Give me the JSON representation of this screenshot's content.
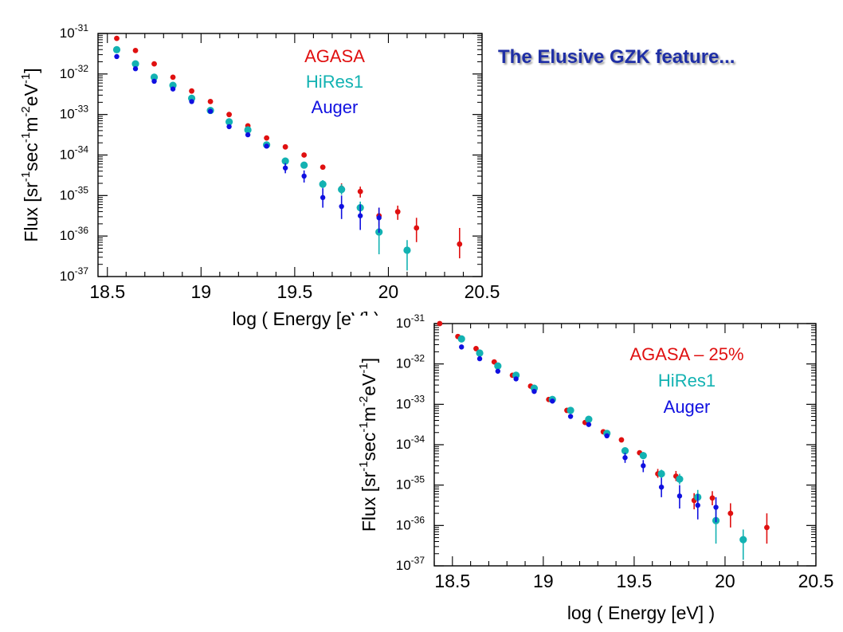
{
  "slide": {
    "title": "The Elusive GZK feature..."
  },
  "colors": {
    "agasa": "#e01010",
    "hires": "#13b2b2",
    "auger": "#1010e0",
    "title": "#1f2fa6"
  },
  "chart_data": [
    {
      "type": "scatter",
      "xlabel": "log ( Energy  [eV] )",
      "ylabel_parts": [
        "Flux  [sr",
        "-1",
        "sec",
        "-1",
        "m",
        "-2",
        "eV",
        "-1",
        "]"
      ],
      "xlim": [
        18.45,
        20.5
      ],
      "ylim_exp": [
        -37,
        -31
      ],
      "y_log": true,
      "xticks": [
        "18.5",
        "19",
        "19.5",
        "20",
        "20.5"
      ],
      "xtick_values": [
        18.5,
        19,
        19.5,
        20,
        20.5
      ],
      "yticks": [
        {
          "base": "10",
          "exp": "-31",
          "value": -31
        },
        {
          "base": "10",
          "exp": "-32",
          "value": -32
        },
        {
          "base": "10",
          "exp": "-33",
          "value": -33
        },
        {
          "base": "10",
          "exp": "-34",
          "value": -34
        },
        {
          "base": "10",
          "exp": "-35",
          "value": -35
        },
        {
          "base": "10",
          "exp": "-36",
          "value": -36
        },
        {
          "base": "10",
          "exp": "-37",
          "value": -37
        }
      ],
      "legend": [
        "AGASA",
        "HiRes1",
        "Auger"
      ],
      "series": [
        {
          "name": "AGASA",
          "color": "#e01010",
          "points": [
            {
              "x": 18.55,
              "y": -31.12,
              "lo": -31.12,
              "hi": -31.12
            },
            {
              "x": 18.65,
              "y": -31.42,
              "lo": -31.42,
              "hi": -31.42
            },
            {
              "x": 18.75,
              "y": -31.75,
              "lo": -31.75,
              "hi": -31.75
            },
            {
              "x": 18.85,
              "y": -32.08,
              "lo": -32.08,
              "hi": -32.08
            },
            {
              "x": 18.95,
              "y": -32.42,
              "lo": -32.42,
              "hi": -32.42
            },
            {
              "x": 19.05,
              "y": -32.68,
              "lo": -32.68,
              "hi": -32.68
            },
            {
              "x": 19.15,
              "y": -33.0,
              "lo": -33.0,
              "hi": -33.0
            },
            {
              "x": 19.25,
              "y": -33.28,
              "lo": -33.28,
              "hi": -33.28
            },
            {
              "x": 19.35,
              "y": -33.58,
              "lo": -33.58,
              "hi": -33.58
            },
            {
              "x": 19.45,
              "y": -33.8,
              "lo": -33.8,
              "hi": -33.8
            },
            {
              "x": 19.55,
              "y": -34.0,
              "lo": -34.0,
              "hi": -34.0
            },
            {
              "x": 19.65,
              "y": -34.3,
              "lo": -34.3,
              "hi": -34.3
            },
            {
              "x": 19.75,
              "y": -34.82,
              "lo": -34.95,
              "hi": -34.7
            },
            {
              "x": 19.85,
              "y": -34.9,
              "lo": -35.05,
              "hi": -34.78
            },
            {
              "x": 19.95,
              "y": -35.5,
              "lo": -35.75,
              "hi": -35.3
            },
            {
              "x": 20.05,
              "y": -35.4,
              "lo": -35.6,
              "hi": -35.25
            },
            {
              "x": 20.15,
              "y": -35.8,
              "lo": -36.15,
              "hi": -35.55
            },
            {
              "x": 20.38,
              "y": -36.2,
              "lo": -36.55,
              "hi": -35.8
            }
          ]
        },
        {
          "name": "HiRes1",
          "color": "#13b2b2",
          "points": [
            {
              "x": 18.55,
              "y": -31.4,
              "lo": -31.4,
              "hi": -31.4
            },
            {
              "x": 18.65,
              "y": -31.75,
              "lo": -31.75,
              "hi": -31.75
            },
            {
              "x": 18.75,
              "y": -32.08,
              "lo": -32.08,
              "hi": -32.08
            },
            {
              "x": 18.85,
              "y": -32.28,
              "lo": -32.28,
              "hi": -32.28
            },
            {
              "x": 18.95,
              "y": -32.6,
              "lo": -32.6,
              "hi": -32.6
            },
            {
              "x": 19.05,
              "y": -32.9,
              "lo": -32.9,
              "hi": -32.9
            },
            {
              "x": 19.15,
              "y": -33.18,
              "lo": -33.18,
              "hi": -33.18
            },
            {
              "x": 19.25,
              "y": -33.38,
              "lo": -33.38,
              "hi": -33.38
            },
            {
              "x": 19.35,
              "y": -33.75,
              "lo": -33.75,
              "hi": -33.75
            },
            {
              "x": 19.45,
              "y": -34.15,
              "lo": -34.22,
              "hi": -34.08
            },
            {
              "x": 19.55,
              "y": -34.25,
              "lo": -34.32,
              "hi": -34.18
            },
            {
              "x": 19.65,
              "y": -34.72,
              "lo": -34.82,
              "hi": -34.62
            },
            {
              "x": 19.75,
              "y": -34.85,
              "lo": -34.98,
              "hi": -34.72
            },
            {
              "x": 19.85,
              "y": -35.3,
              "lo": -35.5,
              "hi": -35.15
            },
            {
              "x": 19.95,
              "y": -35.9,
              "lo": -36.45,
              "hi": -35.55
            },
            {
              "x": 20.1,
              "y": -36.35,
              "lo": -36.85,
              "hi": -36.1
            }
          ]
        },
        {
          "name": "Auger",
          "color": "#1010e0",
          "points": [
            {
              "x": 18.55,
              "y": -31.57,
              "lo": -31.57,
              "hi": -31.57
            },
            {
              "x": 18.65,
              "y": -31.87,
              "lo": -31.87,
              "hi": -31.87
            },
            {
              "x": 18.75,
              "y": -32.18,
              "lo": -32.18,
              "hi": -32.18
            },
            {
              "x": 18.85,
              "y": -32.37,
              "lo": -32.37,
              "hi": -32.37
            },
            {
              "x": 18.95,
              "y": -32.68,
              "lo": -32.68,
              "hi": -32.68
            },
            {
              "x": 19.05,
              "y": -32.92,
              "lo": -32.92,
              "hi": -32.92
            },
            {
              "x": 19.15,
              "y": -33.3,
              "lo": -33.3,
              "hi": -33.3
            },
            {
              "x": 19.25,
              "y": -33.5,
              "lo": -33.5,
              "hi": -33.5
            },
            {
              "x": 19.35,
              "y": -33.78,
              "lo": -33.78,
              "hi": -33.78
            },
            {
              "x": 19.45,
              "y": -34.32,
              "lo": -34.45,
              "hi": -34.2
            },
            {
              "x": 19.55,
              "y": -34.52,
              "lo": -34.68,
              "hi": -34.38
            },
            {
              "x": 19.65,
              "y": -35.05,
              "lo": -35.3,
              "hi": -34.82
            },
            {
              "x": 19.75,
              "y": -35.27,
              "lo": -35.58,
              "hi": -35.0
            },
            {
              "x": 19.85,
              "y": -35.5,
              "lo": -35.85,
              "hi": -35.22
            },
            {
              "x": 19.95,
              "y": -35.55,
              "lo": -35.92,
              "hi": -35.3
            }
          ]
        }
      ]
    },
    {
      "type": "scatter",
      "xlabel": "log ( Energy  [eV] )",
      "ylabel_parts": [
        "Flux  [sr",
        "-1",
        "sec",
        "-1",
        "m",
        "-2",
        "eV",
        "-1",
        "]"
      ],
      "xlim": [
        18.4,
        20.5
      ],
      "ylim_exp": [
        -37,
        -31
      ],
      "y_log": true,
      "xticks": [
        "18.5",
        "19",
        "19.5",
        "20",
        "20.5"
      ],
      "xtick_values": [
        18.5,
        19,
        19.5,
        20,
        20.5
      ],
      "yticks": [
        {
          "base": "10",
          "exp": "-31",
          "value": -31
        },
        {
          "base": "10",
          "exp": "-32",
          "value": -32
        },
        {
          "base": "10",
          "exp": "-33",
          "value": -33
        },
        {
          "base": "10",
          "exp": "-34",
          "value": -34
        },
        {
          "base": "10",
          "exp": "-35",
          "value": -35
        },
        {
          "base": "10",
          "exp": "-36",
          "value": -36
        },
        {
          "base": "10",
          "exp": "-37",
          "value": -37
        }
      ],
      "legend": [
        "AGASA – 25%",
        "HiRes1",
        "Auger"
      ],
      "series": [
        {
          "name": "AGASA – 25%",
          "color": "#e01010",
          "points": [
            {
              "x": 18.43,
              "y": -31.0,
              "lo": -31.0,
              "hi": -31.0
            },
            {
              "x": 18.53,
              "y": -31.32,
              "lo": -31.32,
              "hi": -31.32
            },
            {
              "x": 18.63,
              "y": -31.62,
              "lo": -31.62,
              "hi": -31.62
            },
            {
              "x": 18.73,
              "y": -31.95,
              "lo": -31.95,
              "hi": -31.95
            },
            {
              "x": 18.83,
              "y": -32.28,
              "lo": -32.28,
              "hi": -32.28
            },
            {
              "x": 18.93,
              "y": -32.55,
              "lo": -32.55,
              "hi": -32.55
            },
            {
              "x": 19.03,
              "y": -32.88,
              "lo": -32.88,
              "hi": -32.88
            },
            {
              "x": 19.13,
              "y": -33.15,
              "lo": -33.15,
              "hi": -33.15
            },
            {
              "x": 19.23,
              "y": -33.45,
              "lo": -33.45,
              "hi": -33.45
            },
            {
              "x": 19.33,
              "y": -33.68,
              "lo": -33.68,
              "hi": -33.68
            },
            {
              "x": 19.43,
              "y": -33.88,
              "lo": -33.88,
              "hi": -33.88
            },
            {
              "x": 19.53,
              "y": -34.2,
              "lo": -34.2,
              "hi": -34.2
            },
            {
              "x": 19.63,
              "y": -34.72,
              "lo": -34.82,
              "hi": -34.6
            },
            {
              "x": 19.73,
              "y": -34.78,
              "lo": -34.9,
              "hi": -34.65
            },
            {
              "x": 19.83,
              "y": -35.38,
              "lo": -35.6,
              "hi": -35.2
            },
            {
              "x": 19.93,
              "y": -35.32,
              "lo": -35.5,
              "hi": -35.15
            },
            {
              "x": 20.03,
              "y": -35.7,
              "lo": -36.05,
              "hi": -35.45
            },
            {
              "x": 20.23,
              "y": -36.05,
              "lo": -36.45,
              "hi": -35.7
            }
          ]
        },
        {
          "name": "HiRes1",
          "color": "#13b2b2",
          "points": [
            {
              "x": 18.55,
              "y": -31.38,
              "lo": -31.38,
              "hi": -31.38
            },
            {
              "x": 18.65,
              "y": -31.73,
              "lo": -31.73,
              "hi": -31.73
            },
            {
              "x": 18.75,
              "y": -32.05,
              "lo": -32.05,
              "hi": -32.05
            },
            {
              "x": 18.85,
              "y": -32.28,
              "lo": -32.28,
              "hi": -32.28
            },
            {
              "x": 18.95,
              "y": -32.6,
              "lo": -32.6,
              "hi": -32.6
            },
            {
              "x": 19.05,
              "y": -32.88,
              "lo": -32.88,
              "hi": -32.88
            },
            {
              "x": 19.15,
              "y": -33.15,
              "lo": -33.15,
              "hi": -33.15
            },
            {
              "x": 19.25,
              "y": -33.37,
              "lo": -33.37,
              "hi": -33.37
            },
            {
              "x": 19.35,
              "y": -33.72,
              "lo": -33.72,
              "hi": -33.72
            },
            {
              "x": 19.45,
              "y": -34.15,
              "lo": -34.22,
              "hi": -34.08
            },
            {
              "x": 19.55,
              "y": -34.27,
              "lo": -34.35,
              "hi": -34.18
            },
            {
              "x": 19.65,
              "y": -34.72,
              "lo": -34.82,
              "hi": -34.62
            },
            {
              "x": 19.75,
              "y": -34.85,
              "lo": -34.98,
              "hi": -34.72
            },
            {
              "x": 19.85,
              "y": -35.3,
              "lo": -35.5,
              "hi": -35.12
            },
            {
              "x": 19.95,
              "y": -35.88,
              "lo": -36.45,
              "hi": -35.55
            },
            {
              "x": 20.1,
              "y": -36.35,
              "lo": -36.85,
              "hi": -36.1
            }
          ]
        },
        {
          "name": "Auger",
          "color": "#1010e0",
          "points": [
            {
              "x": 18.55,
              "y": -31.58,
              "lo": -31.58,
              "hi": -31.58
            },
            {
              "x": 18.65,
              "y": -31.87,
              "lo": -31.87,
              "hi": -31.87
            },
            {
              "x": 18.75,
              "y": -32.18,
              "lo": -32.18,
              "hi": -32.18
            },
            {
              "x": 18.85,
              "y": -32.37,
              "lo": -32.37,
              "hi": -32.37
            },
            {
              "x": 18.95,
              "y": -32.68,
              "lo": -32.68,
              "hi": -32.68
            },
            {
              "x": 19.05,
              "y": -32.92,
              "lo": -32.92,
              "hi": -32.92
            },
            {
              "x": 19.15,
              "y": -33.3,
              "lo": -33.3,
              "hi": -33.3
            },
            {
              "x": 19.25,
              "y": -33.5,
              "lo": -33.5,
              "hi": -33.5
            },
            {
              "x": 19.35,
              "y": -33.78,
              "lo": -33.78,
              "hi": -33.78
            },
            {
              "x": 19.45,
              "y": -34.32,
              "lo": -34.45,
              "hi": -34.2
            },
            {
              "x": 19.55,
              "y": -34.52,
              "lo": -34.68,
              "hi": -34.38
            },
            {
              "x": 19.65,
              "y": -35.05,
              "lo": -35.3,
              "hi": -34.82
            },
            {
              "x": 19.75,
              "y": -35.27,
              "lo": -35.58,
              "hi": -35.0
            },
            {
              "x": 19.85,
              "y": -35.5,
              "lo": -35.85,
              "hi": -35.22
            },
            {
              "x": 19.95,
              "y": -35.55,
              "lo": -35.92,
              "hi": -35.3
            }
          ]
        }
      ]
    }
  ]
}
